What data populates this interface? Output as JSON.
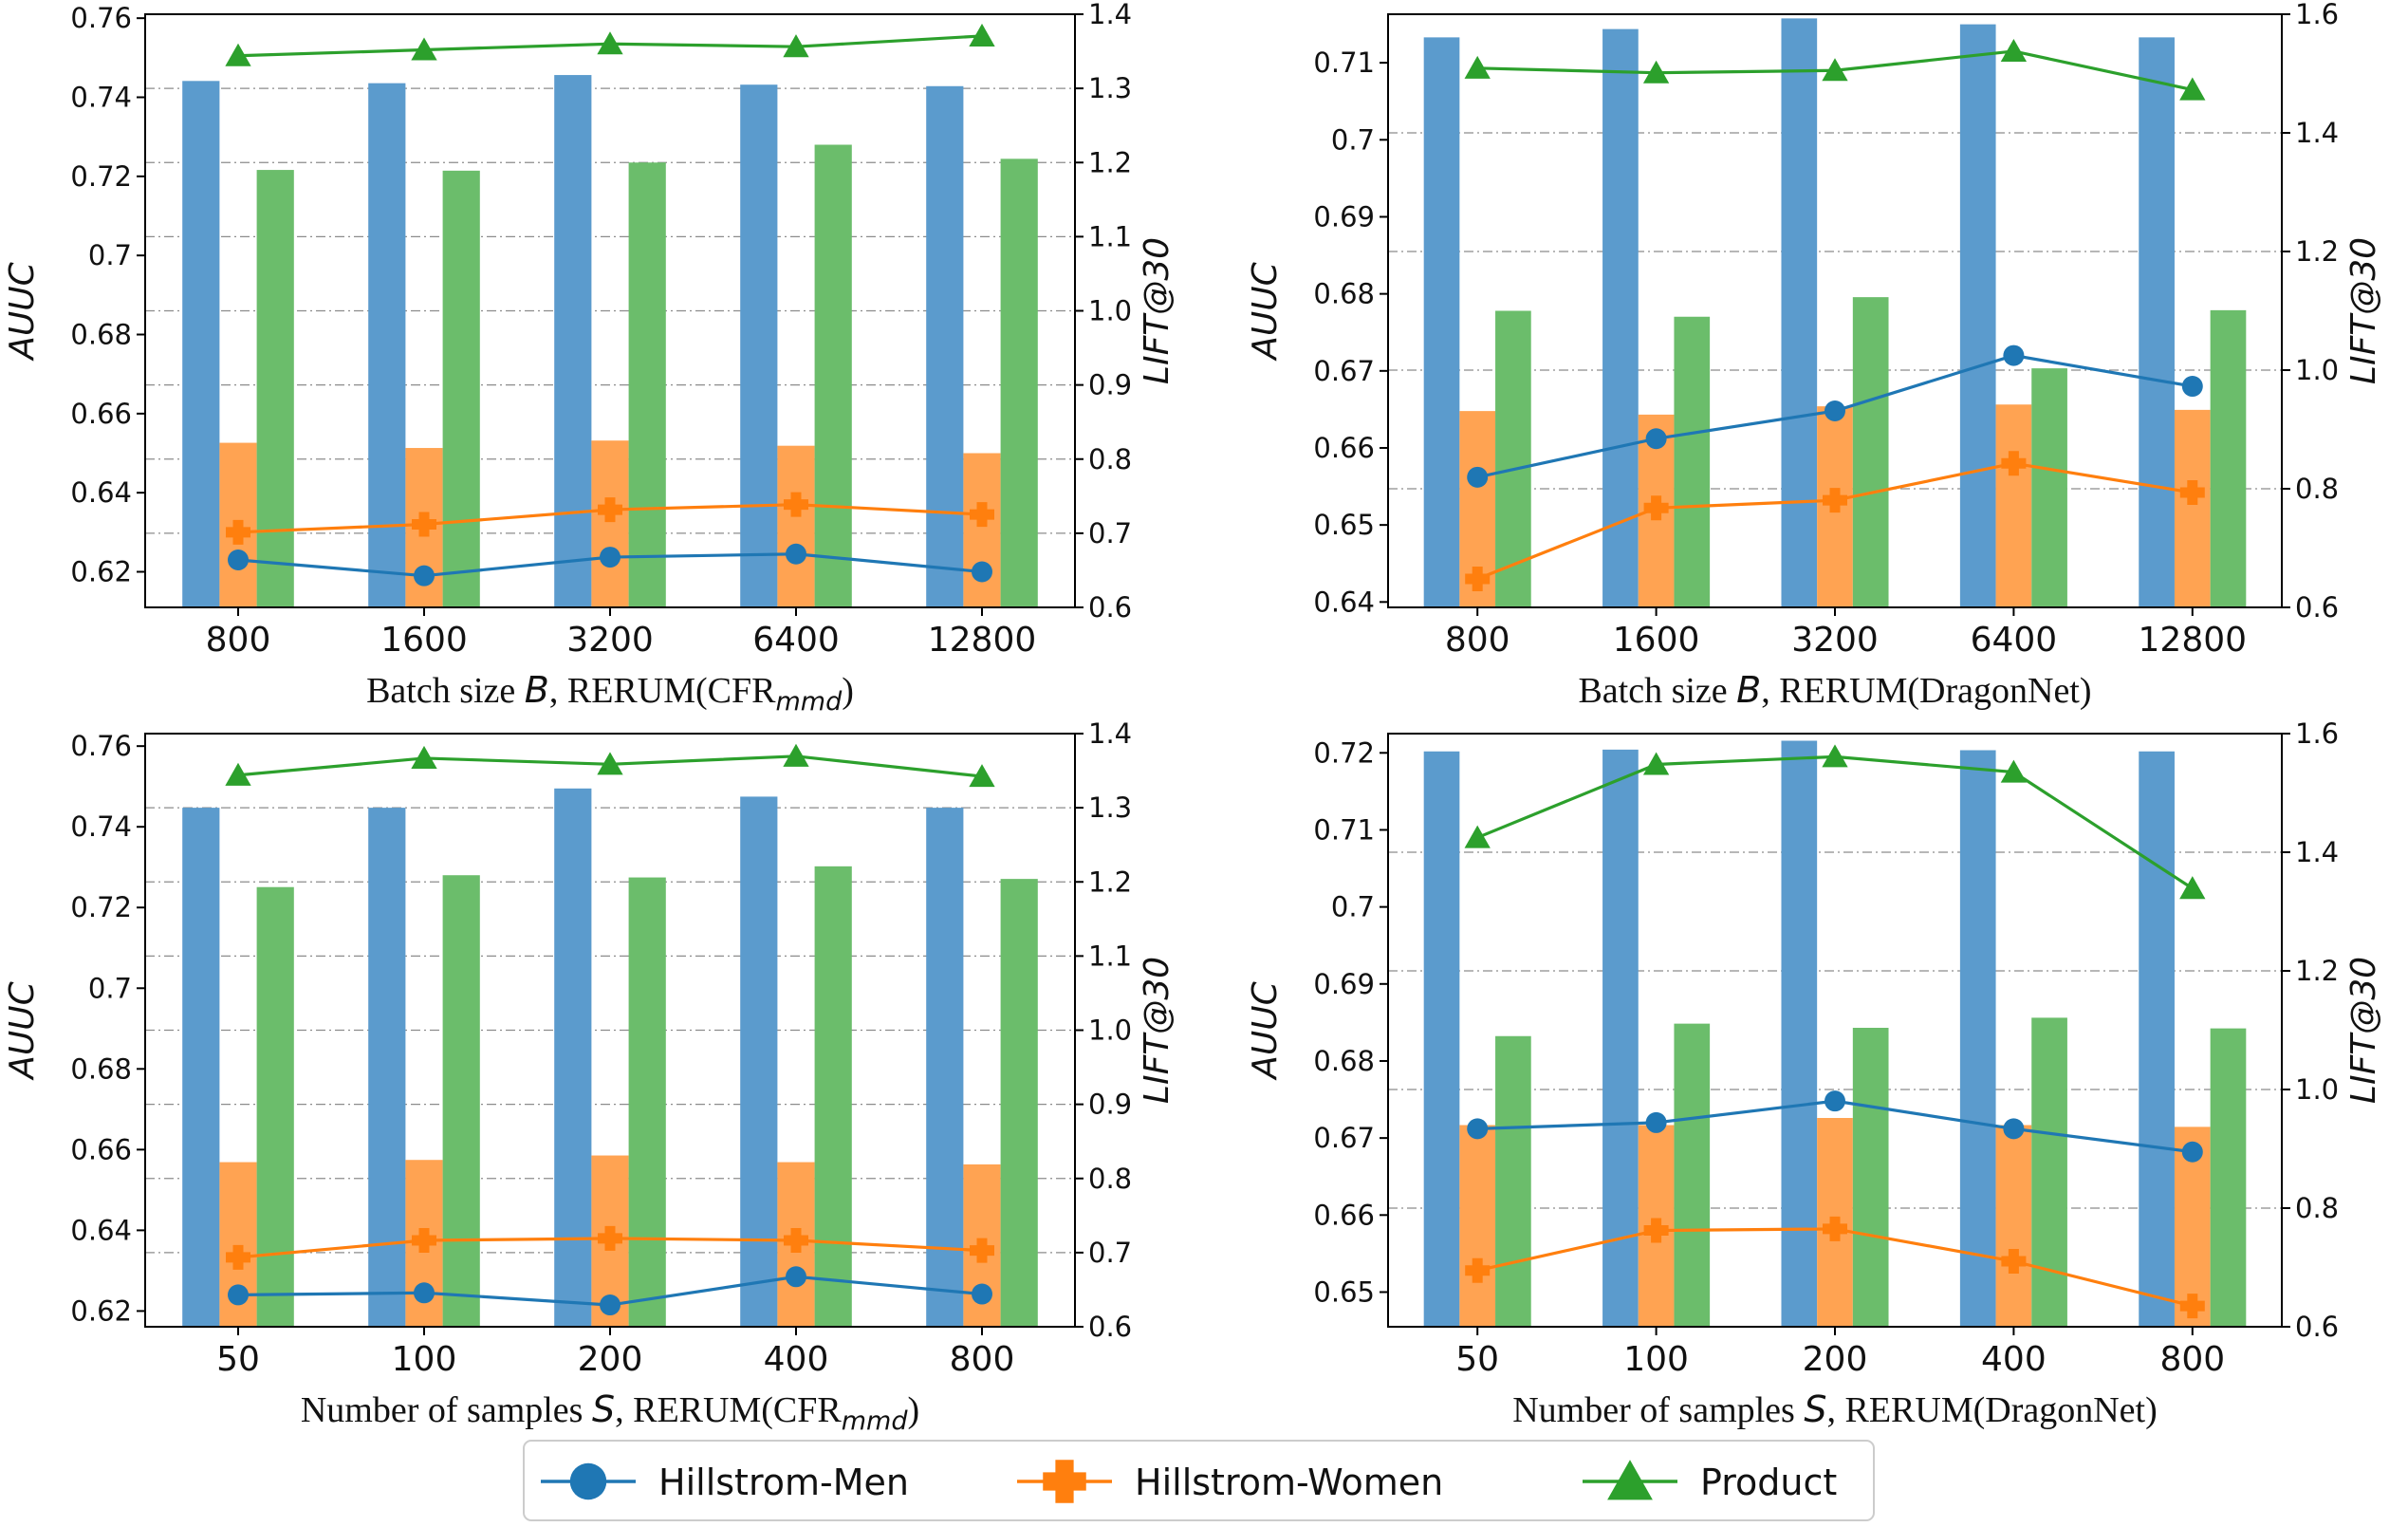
{
  "colors": {
    "men": "#1f77b4",
    "women": "#ff7f0e",
    "product": "#2ca02c",
    "bar_men": "#5b9bcd",
    "bar_women": "#ffa352",
    "bar_product": "#6bbd6b"
  },
  "legend": {
    "placement": "bottom-center",
    "items": [
      {
        "label": "Hillstrom-Men",
        "marker": "circle",
        "color_key": "men"
      },
      {
        "label": "Hillstrom-Women",
        "marker": "plus",
        "color_key": "women"
      },
      {
        "label": "Product",
        "marker": "triangle",
        "color_key": "product"
      }
    ]
  },
  "chart_data": [
    {
      "type": "bar",
      "xlabel_main": "Batch size ",
      "xlabel_var": "B",
      "xlabel_rest": ", RERUM(CFR",
      "xlabel_sub": "mmd",
      "xlabel_end": ")",
      "ylabel_left": "AUUC",
      "ylabel_right": "LIFT@30",
      "categories": [
        "800",
        "1600",
        "3200",
        "6400",
        "12800"
      ],
      "ylim_left": [
        0.611,
        0.761
      ],
      "ylim_right": [
        0.6,
        1.4
      ],
      "left_ticks": [
        "0.62",
        "0.64",
        "0.66",
        "0.68",
        "0.7",
        "0.72",
        "0.74",
        "0.76"
      ],
      "right_ticks": [
        "0.6",
        "0.7",
        "0.8",
        "0.9",
        "1.0",
        "1.1",
        "1.2",
        "1.3",
        "1.4"
      ],
      "grid": "right-axis dash-dot",
      "bar_series": [
        {
          "key": "men",
          "values": [
            1.31,
            1.307,
            1.318,
            1.305,
            1.303
          ]
        },
        {
          "key": "women",
          "values": [
            0.822,
            0.815,
            0.825,
            0.818,
            0.808
          ]
        },
        {
          "key": "product",
          "values": [
            1.19,
            1.189,
            1.2,
            1.224,
            1.205
          ]
        }
      ],
      "line_series": [
        {
          "key": "men",
          "marker": "circle",
          "values": [
            0.623,
            0.619,
            0.6237,
            0.6245,
            0.62
          ]
        },
        {
          "key": "women",
          "marker": "plus",
          "values": [
            0.63,
            0.632,
            0.6357,
            0.637,
            0.6345
          ]
        },
        {
          "key": "product",
          "marker": "triangle",
          "values": [
            0.7505,
            0.752,
            0.7535,
            0.7528,
            0.7555
          ]
        }
      ]
    },
    {
      "type": "bar",
      "xlabel_main": "Batch size ",
      "xlabel_var": "B",
      "xlabel_rest": ", RERUM(DragonNet)",
      "xlabel_sub": "",
      "xlabel_end": "",
      "ylabel_left": "AUUC",
      "ylabel_right": "LIFT@30",
      "categories": [
        "800",
        "1600",
        "3200",
        "6400",
        "12800"
      ],
      "ylim_left": [
        0.6393,
        0.7163
      ],
      "ylim_right": [
        0.6,
        1.6
      ],
      "left_ticks": [
        "0.64",
        "0.65",
        "0.66",
        "0.67",
        "0.68",
        "0.69",
        "0.7",
        "0.71"
      ],
      "right_ticks": [
        "0.6",
        "0.8",
        "1.0",
        "1.2",
        "1.4",
        "1.6"
      ],
      "grid": "right-axis dash-dot",
      "bar_series": [
        {
          "key": "men",
          "values": [
            1.561,
            1.575,
            1.593,
            1.583,
            1.561
          ]
        },
        {
          "key": "women",
          "values": [
            0.931,
            0.925,
            0.939,
            0.942,
            0.933
          ]
        },
        {
          "key": "product",
          "values": [
            1.1,
            1.09,
            1.123,
            1.003,
            1.101
          ]
        }
      ],
      "line_series": [
        {
          "key": "men",
          "marker": "circle",
          "values": [
            0.6562,
            0.6612,
            0.6648,
            0.672,
            0.668
          ]
        },
        {
          "key": "women",
          "marker": "plus",
          "values": [
            0.643,
            0.6522,
            0.6532,
            0.658,
            0.6542
          ]
        },
        {
          "key": "product",
          "marker": "triangle",
          "values": [
            0.7093,
            0.7087,
            0.709,
            0.7115,
            0.7065
          ]
        }
      ]
    },
    {
      "type": "bar",
      "xlabel_main": "Number of samples ",
      "xlabel_var": "S",
      "xlabel_rest": ", RERUM(CFR",
      "xlabel_sub": "mmd",
      "xlabel_end": ")",
      "ylabel_left": "AUUC",
      "ylabel_right": "LIFT@30",
      "categories": [
        "50",
        "100",
        "200",
        "400",
        "800"
      ],
      "ylim_left": [
        0.6161,
        0.7631
      ],
      "ylim_right": [
        0.6,
        1.4
      ],
      "left_ticks": [
        "0.62",
        "0.64",
        "0.66",
        "0.68",
        "0.7",
        "0.72",
        "0.74",
        "0.76"
      ],
      "right_ticks": [
        "0.6",
        "0.7",
        "0.8",
        "0.9",
        "1.0",
        "1.1",
        "1.2",
        "1.3",
        "1.4"
      ],
      "grid": "right-axis dash-dot",
      "bar_series": [
        {
          "key": "men",
          "values": [
            1.3,
            1.3,
            1.326,
            1.315,
            1.3
          ]
        },
        {
          "key": "women",
          "values": [
            0.822,
            0.825,
            0.831,
            0.822,
            0.819
          ]
        },
        {
          "key": "product",
          "values": [
            1.193,
            1.209,
            1.206,
            1.221,
            1.204
          ]
        }
      ],
      "line_series": [
        {
          "key": "men",
          "marker": "circle",
          "values": [
            0.624,
            0.6245,
            0.6215,
            0.6285,
            0.6242
          ]
        },
        {
          "key": "women",
          "marker": "plus",
          "values": [
            0.6333,
            0.6375,
            0.638,
            0.6375,
            0.635
          ]
        },
        {
          "key": "product",
          "marker": "triangle",
          "values": [
            0.7528,
            0.757,
            0.7555,
            0.7575,
            0.7525
          ]
        }
      ]
    },
    {
      "type": "bar",
      "xlabel_main": "Number of samples ",
      "xlabel_var": "S",
      "xlabel_rest": ", RERUM(DragonNet)",
      "xlabel_sub": "",
      "xlabel_end": "",
      "ylabel_left": "AUUC",
      "ylabel_right": "LIFT@30",
      "categories": [
        "50",
        "100",
        "200",
        "400",
        "800"
      ],
      "ylim_left": [
        0.6455,
        0.7225
      ],
      "ylim_right": [
        0.6,
        1.6
      ],
      "left_ticks": [
        "0.65",
        "0.66",
        "0.67",
        "0.68",
        "0.69",
        "0.7",
        "0.71",
        "0.72"
      ],
      "right_ticks": [
        "0.6",
        "0.8",
        "1.0",
        "1.2",
        "1.4",
        "1.6"
      ],
      "grid": "right-axis dash-dot",
      "bar_series": [
        {
          "key": "men",
          "values": [
            1.57,
            1.573,
            1.588,
            1.572,
            1.57
          ]
        },
        {
          "key": "women",
          "values": [
            0.94,
            0.94,
            0.952,
            0.94,
            0.937
          ]
        },
        {
          "key": "product",
          "values": [
            1.09,
            1.111,
            1.104,
            1.121,
            1.103
          ]
        }
      ],
      "line_series": [
        {
          "key": "men",
          "marker": "circle",
          "values": [
            0.6712,
            0.672,
            0.6748,
            0.6712,
            0.6682
          ]
        },
        {
          "key": "women",
          "marker": "plus",
          "values": [
            0.6528,
            0.658,
            0.6582,
            0.654,
            0.6482
          ]
        },
        {
          "key": "product",
          "marker": "triangle",
          "values": [
            0.709,
            0.7185,
            0.7195,
            0.7175,
            0.7024
          ]
        }
      ]
    }
  ]
}
